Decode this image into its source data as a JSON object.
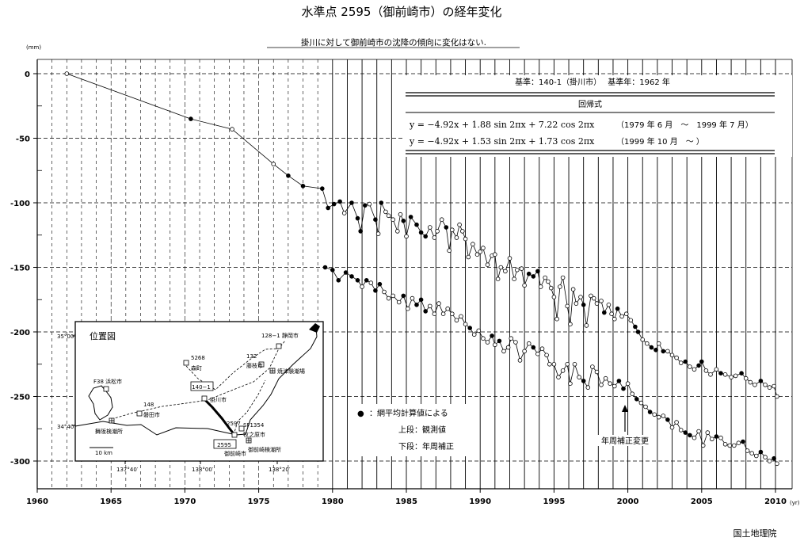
{
  "title": "水準点 2595（御前崎市）の経年変化",
  "subtitle": "掛川に対して御前崎市の沈降の傾向に変化はない.",
  "footer": "国土地理院",
  "info": {
    "base_line": "基準：140-1（掛川市）　 基準年：1962 年",
    "formula_title": "回帰式",
    "formula1": "y = −4.92x + 1.88 sin 2πx + 7.22 cos 2πx",
    "formula1_period": "（1979 年 6 月　～　1999 年 7 月）",
    "formula2": "y = −4.92x + 1.53 sin 2πx + 1.73 cos 2πx",
    "formula2_period": "（1999 年 10 月　～ ）"
  },
  "legend": {
    "bullet": "●",
    "dot": "：網平均計算値による",
    "upper": "上段：観測値",
    "lower": "下段：年周補正"
  },
  "annotation": {
    "text": "年周補正変更",
    "year": 2000
  },
  "map": {
    "title": "位置図",
    "lat_top": "35°00′",
    "lat_bottom": "34°40′",
    "lon_labels": [
      "137°40′",
      "138°00′",
      "138°20′"
    ],
    "scale": "10 km",
    "places": [
      {
        "code": "5268",
        "name": "森町"
      },
      {
        "code": "128−1",
        "name": "静岡市"
      },
      {
        "code": "132",
        "name": "藤枝市"
      },
      {
        "code": "",
        "name": "焼津験潮場"
      },
      {
        "code": "F38",
        "name": "浜松市"
      },
      {
        "code": "148",
        "name": "磐田市"
      },
      {
        "code": "140−1",
        "name": ""
      },
      {
        "code": "",
        "name": "掛川市"
      },
      {
        "code": "",
        "name": "舞阪検潮所"
      },
      {
        "code": "2597",
        "name": ""
      },
      {
        "code": "SF1354",
        "name": "牧之原市"
      },
      {
        "code": "2595",
        "name": ""
      },
      {
        "code": "",
        "name": "御前崎市"
      },
      {
        "code": "",
        "name": "御前崎検潮所"
      }
    ]
  },
  "chart_data": {
    "type": "line",
    "title": "水準点 2595（御前崎市）の経年変化",
    "xlabel": "",
    "ylabel": "",
    "x_unit": "(yr)",
    "y_unit": "(mm)",
    "xlim": [
      1960,
      2011
    ],
    "ylim": [
      -320,
      10
    ],
    "x_ticks": [
      1960,
      1965,
      1970,
      1975,
      1980,
      1985,
      1990,
      1995,
      2000,
      2005,
      2010
    ],
    "y_ticks": [
      0,
      -50,
      -100,
      -150,
      -200,
      -250,
      -300
    ],
    "grid": true,
    "series": [
      {
        "name": "上段：観測値",
        "points": [
          [
            1962.0,
            0,
            "o"
          ],
          [
            1970.4,
            -35,
            "f"
          ],
          [
            1973.2,
            -43,
            "o"
          ],
          [
            1976.0,
            -70,
            "o"
          ],
          [
            1977.0,
            -79,
            "f"
          ],
          [
            1978.0,
            -87,
            "f"
          ],
          [
            1979.3,
            -89,
            "f"
          ],
          [
            1979.7,
            -104,
            "f"
          ],
          [
            1980.1,
            -101,
            "f"
          ],
          [
            1980.5,
            -99,
            "f"
          ],
          [
            1980.8,
            -108,
            "o"
          ],
          [
            1981.3,
            -100,
            "f"
          ],
          [
            1981.7,
            -112,
            "f"
          ],
          [
            1981.9,
            -122,
            "f"
          ],
          [
            1982.2,
            -102,
            "f"
          ],
          [
            1982.5,
            -101,
            "o"
          ],
          [
            1982.9,
            -113,
            "f"
          ],
          [
            1983.1,
            -124,
            "o"
          ],
          [
            1983.3,
            -100,
            "f"
          ],
          [
            1983.6,
            -107,
            "o"
          ],
          [
            1983.8,
            -110,
            "o"
          ],
          [
            1984.1,
            -113,
            "o"
          ],
          [
            1984.4,
            -122,
            "o"
          ],
          [
            1984.6,
            -109,
            "o"
          ],
          [
            1984.8,
            -114,
            "f"
          ],
          [
            1985.0,
            -126,
            "o"
          ],
          [
            1985.3,
            -111,
            "f"
          ],
          [
            1985.7,
            -117,
            "f"
          ],
          [
            1986.0,
            -123,
            "f"
          ],
          [
            1986.3,
            -126,
            "f"
          ],
          [
            1986.6,
            -119,
            "o"
          ],
          [
            1986.9,
            -127,
            "o"
          ],
          [
            1987.1,
            -122,
            "o"
          ],
          [
            1987.4,
            -113,
            "o"
          ],
          [
            1987.7,
            -119,
            "f"
          ],
          [
            1987.9,
            -137,
            "o"
          ],
          [
            1988.1,
            -121,
            "o"
          ],
          [
            1988.4,
            -127,
            "o"
          ],
          [
            1988.6,
            -117,
            "o"
          ],
          [
            1988.8,
            -122,
            "o"
          ],
          [
            1989.0,
            -128,
            "o"
          ],
          [
            1989.2,
            -142,
            "o"
          ],
          [
            1989.5,
            -132,
            "o"
          ],
          [
            1989.8,
            -140,
            "o"
          ],
          [
            1990.0,
            -138,
            "o"
          ],
          [
            1990.2,
            -135,
            "o"
          ],
          [
            1990.5,
            -148,
            "o"
          ],
          [
            1990.8,
            -141,
            "o"
          ],
          [
            1991.0,
            -140,
            "o"
          ],
          [
            1991.2,
            -159,
            "o"
          ],
          [
            1991.4,
            -150,
            "o"
          ],
          [
            1991.7,
            -153,
            "o"
          ],
          [
            1992.0,
            -143,
            "o"
          ],
          [
            1992.3,
            -159,
            "o"
          ],
          [
            1992.5,
            -152,
            "o"
          ],
          [
            1992.8,
            -151,
            "o"
          ],
          [
            1993.0,
            -164,
            "o"
          ],
          [
            1993.3,
            -155,
            "f"
          ],
          [
            1993.6,
            -157,
            "f"
          ],
          [
            1993.9,
            -153,
            "f"
          ],
          [
            1994.1,
            -165,
            "o"
          ],
          [
            1994.4,
            -158,
            "o"
          ],
          [
            1994.6,
            -161,
            "o"
          ],
          [
            1994.8,
            -166,
            "o"
          ],
          [
            1995.0,
            -173,
            "o"
          ],
          [
            1995.2,
            -190,
            "o"
          ],
          [
            1995.4,
            -165,
            "o"
          ],
          [
            1995.6,
            -158,
            "o"
          ],
          [
            1995.9,
            -180,
            "o"
          ],
          [
            1996.1,
            -194,
            "o"
          ],
          [
            1996.3,
            -167,
            "o"
          ],
          [
            1996.5,
            -178,
            "o"
          ],
          [
            1996.8,
            -173,
            "o"
          ],
          [
            1997.0,
            -179,
            "f"
          ],
          [
            1997.2,
            -195,
            "o"
          ],
          [
            1997.5,
            -172,
            "o"
          ],
          [
            1997.7,
            -174,
            "o"
          ],
          [
            1997.9,
            -178,
            "o"
          ],
          [
            1998.2,
            -176,
            "o"
          ],
          [
            1998.4,
            -185,
            "f"
          ],
          [
            1998.7,
            -179,
            "o"
          ],
          [
            1998.9,
            -186,
            "o"
          ],
          [
            1999.1,
            -190,
            "o"
          ],
          [
            1999.3,
            -182,
            "f"
          ],
          [
            1999.6,
            -188,
            "o"
          ],
          [
            1999.9,
            -186,
            "o"
          ],
          [
            2000.2,
            -191,
            "o"
          ],
          [
            2000.5,
            -196,
            "f"
          ],
          [
            2000.7,
            -200,
            "f"
          ],
          [
            2001.0,
            -206,
            "o"
          ],
          [
            2001.3,
            -209,
            "o"
          ],
          [
            2001.6,
            -212,
            "f"
          ],
          [
            2001.9,
            -214,
            "f"
          ],
          [
            2002.1,
            -209,
            "o"
          ],
          [
            2002.4,
            -215,
            "f"
          ],
          [
            2002.7,
            -215,
            "o"
          ],
          [
            2003.0,
            -218,
            "o"
          ],
          [
            2003.3,
            -220,
            "o"
          ],
          [
            2003.6,
            -224,
            "o"
          ],
          [
            2003.9,
            -223,
            "f"
          ],
          [
            2004.2,
            -227,
            "o"
          ],
          [
            2004.5,
            -229,
            "o"
          ],
          [
            2004.8,
            -226,
            "f"
          ],
          [
            2005.0,
            -223,
            "f"
          ],
          [
            2005.3,
            -230,
            "o"
          ],
          [
            2005.6,
            -233,
            "o"
          ],
          [
            2006.0,
            -229,
            "o"
          ],
          [
            2006.3,
            -232,
            "f"
          ],
          [
            2006.6,
            -233,
            "o"
          ],
          [
            2007.0,
            -235,
            "o"
          ],
          [
            2007.3,
            -234,
            "o"
          ],
          [
            2007.7,
            -232,
            "f"
          ],
          [
            2008.0,
            -236,
            "o"
          ],
          [
            2008.3,
            -239,
            "o"
          ],
          [
            2008.6,
            -241,
            "o"
          ],
          [
            2009.0,
            -238,
            "f"
          ],
          [
            2009.3,
            -241,
            "o"
          ],
          [
            2009.6,
            -243,
            "o"
          ],
          [
            2009.9,
            -242,
            "o"
          ],
          [
            2010.1,
            -250,
            "o"
          ]
        ]
      },
      {
        "name": "下段：年周補正",
        "points": [
          [
            1979.5,
            -150,
            "f"
          ],
          [
            1980.0,
            -152,
            "f"
          ],
          [
            1980.4,
            -160,
            "f"
          ],
          [
            1980.9,
            -154,
            "f"
          ],
          [
            1981.3,
            -157,
            "f"
          ],
          [
            1981.7,
            -160,
            "f"
          ],
          [
            1982.0,
            -165,
            "o"
          ],
          [
            1982.3,
            -160,
            "f"
          ],
          [
            1982.6,
            -162,
            "o"
          ],
          [
            1982.9,
            -168,
            "f"
          ],
          [
            1983.2,
            -163,
            "f"
          ],
          [
            1983.5,
            -169,
            "o"
          ],
          [
            1983.8,
            -174,
            "o"
          ],
          [
            1984.1,
            -172,
            "o"
          ],
          [
            1984.5,
            -177,
            "o"
          ],
          [
            1984.8,
            -172,
            "f"
          ],
          [
            1985.1,
            -182,
            "o"
          ],
          [
            1985.4,
            -174,
            "o"
          ],
          [
            1985.7,
            -179,
            "f"
          ],
          [
            1986.0,
            -175,
            "f"
          ],
          [
            1986.3,
            -184,
            "f"
          ],
          [
            1986.6,
            -180,
            "o"
          ],
          [
            1986.9,
            -186,
            "o"
          ],
          [
            1987.2,
            -178,
            "o"
          ],
          [
            1987.5,
            -186,
            "o"
          ],
          [
            1987.8,
            -182,
            "o"
          ],
          [
            1988.1,
            -186,
            "o"
          ],
          [
            1988.4,
            -191,
            "o"
          ],
          [
            1988.7,
            -188,
            "o"
          ],
          [
            1989.0,
            -194,
            "o"
          ],
          [
            1989.3,
            -197,
            "f"
          ],
          [
            1989.6,
            -202,
            "o"
          ],
          [
            1989.9,
            -199,
            "o"
          ],
          [
            1990.2,
            -205,
            "o"
          ],
          [
            1990.5,
            -208,
            "o"
          ],
          [
            1990.8,
            -203,
            "f"
          ],
          [
            1991.0,
            -210,
            "o"
          ],
          [
            1991.3,
            -207,
            "f"
          ],
          [
            1991.6,
            -215,
            "o"
          ],
          [
            1991.9,
            -212,
            "o"
          ],
          [
            1992.1,
            -205,
            "o"
          ],
          [
            1992.4,
            -208,
            "o"
          ],
          [
            1992.7,
            -222,
            "o"
          ],
          [
            1993.0,
            -215,
            "o"
          ],
          [
            1993.3,
            -209,
            "o"
          ],
          [
            1993.6,
            -212,
            "f"
          ],
          [
            1993.9,
            -217,
            "o"
          ],
          [
            1994.2,
            -213,
            "o"
          ],
          [
            1994.5,
            -218,
            "o"
          ],
          [
            1994.7,
            -225,
            "o"
          ],
          [
            1995.0,
            -225,
            "o"
          ],
          [
            1995.3,
            -235,
            "o"
          ],
          [
            1995.6,
            -230,
            "o"
          ],
          [
            1995.9,
            -225,
            "o"
          ],
          [
            1996.1,
            -240,
            "o"
          ],
          [
            1996.4,
            -225,
            "o"
          ],
          [
            1996.7,
            -235,
            "o"
          ],
          [
            1997.0,
            -238,
            "f"
          ],
          [
            1997.3,
            -243,
            "o"
          ],
          [
            1997.6,
            -227,
            "o"
          ],
          [
            1997.9,
            -231,
            "o"
          ],
          [
            1998.2,
            -241,
            "o"
          ],
          [
            1998.5,
            -236,
            "o"
          ],
          [
            1998.8,
            -240,
            "o"
          ],
          [
            1999.1,
            -242,
            "o"
          ],
          [
            1999.4,
            -238,
            "f"
          ],
          [
            1999.7,
            -244,
            "f"
          ],
          [
            2000.0,
            -240,
            "o"
          ],
          [
            2000.3,
            -248,
            "o"
          ],
          [
            2000.6,
            -252,
            "f"
          ],
          [
            2000.9,
            -255,
            "o"
          ],
          [
            2001.2,
            -258,
            "o"
          ],
          [
            2001.5,
            -262,
            "f"
          ],
          [
            2001.8,
            -264,
            "o"
          ],
          [
            2002.1,
            -266,
            "o"
          ],
          [
            2002.4,
            -265,
            "o"
          ],
          [
            2002.7,
            -268,
            "f"
          ],
          [
            2003.0,
            -274,
            "o"
          ],
          [
            2003.3,
            -270,
            "o"
          ],
          [
            2003.6,
            -276,
            "o"
          ],
          [
            2003.9,
            -278,
            "f"
          ],
          [
            2004.2,
            -280,
            "f"
          ],
          [
            2004.5,
            -282,
            "o"
          ],
          [
            2004.8,
            -277,
            "o"
          ],
          [
            2005.1,
            -288,
            "o"
          ],
          [
            2005.4,
            -278,
            "o"
          ],
          [
            2005.7,
            -283,
            "o"
          ],
          [
            2006.0,
            -281,
            "f"
          ],
          [
            2006.3,
            -282,
            "o"
          ],
          [
            2006.6,
            -287,
            "o"
          ],
          [
            2006.9,
            -288,
            "o"
          ],
          [
            2007.2,
            -288,
            "o"
          ],
          [
            2007.5,
            -286,
            "o"
          ],
          [
            2007.8,
            -285,
            "f"
          ],
          [
            2008.1,
            -292,
            "o"
          ],
          [
            2008.4,
            -294,
            "o"
          ],
          [
            2008.7,
            -296,
            "o"
          ],
          [
            2009.0,
            -293,
            "f"
          ],
          [
            2009.3,
            -297,
            "o"
          ],
          [
            2009.6,
            -300,
            "o"
          ],
          [
            2009.9,
            -298,
            "f"
          ],
          [
            2010.1,
            -302,
            "o"
          ]
        ]
      }
    ]
  }
}
